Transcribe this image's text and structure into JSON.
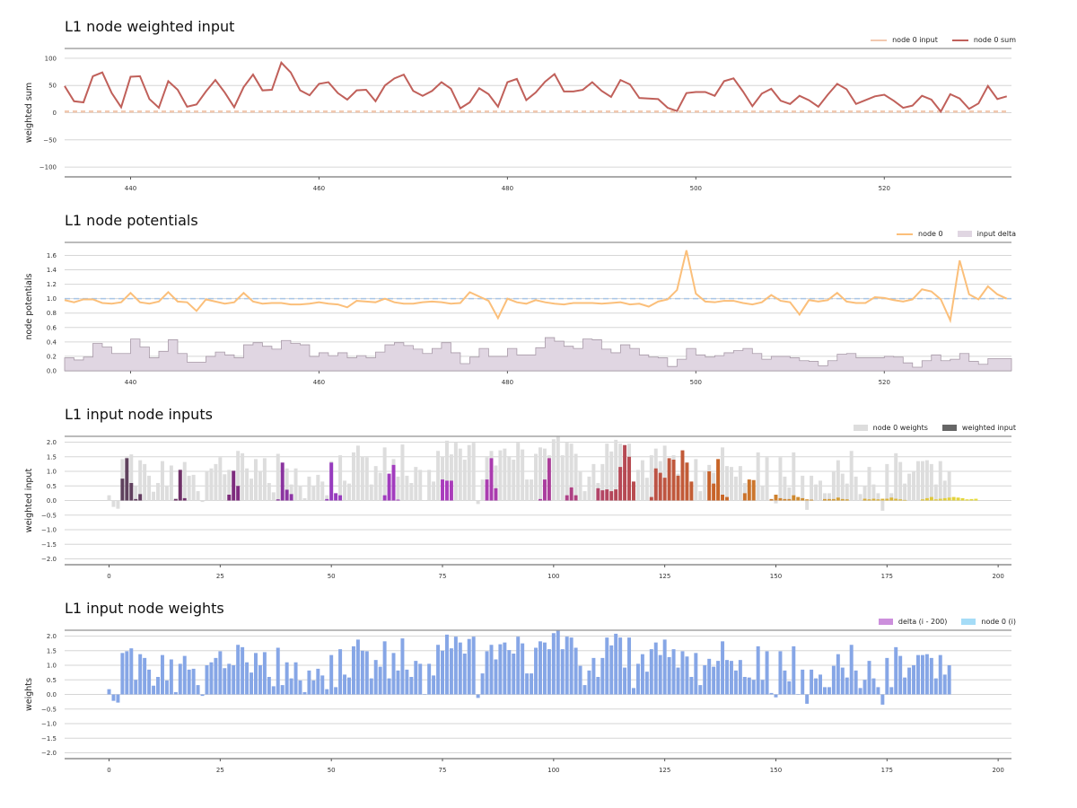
{
  "chart_data": [
    {
      "type": "line",
      "title": "L1 node weighted input",
      "xlabel": "",
      "ylabel": "weighted sum",
      "xlim": [
        433,
        533.5
      ],
      "ylim": [
        -118,
        118
      ],
      "xticks": [
        440,
        460,
        480,
        500,
        520
      ],
      "yticks": [
        -100,
        -50,
        0,
        50,
        100
      ],
      "yticklabels": [
        "−100",
        "−50",
        "0",
        "50",
        "100"
      ],
      "grid": true,
      "legend_position": "top-right",
      "x": [
        433,
        434,
        435,
        436,
        437,
        438,
        439,
        440,
        441,
        442,
        443,
        444,
        445,
        446,
        447,
        448,
        449,
        450,
        451,
        452,
        453,
        454,
        455,
        456,
        457,
        458,
        459,
        460,
        461,
        462,
        463,
        464,
        465,
        466,
        467,
        468,
        469,
        470,
        471,
        472,
        473,
        474,
        475,
        476,
        477,
        478,
        479,
        480,
        481,
        482,
        483,
        484,
        485,
        486,
        487,
        488,
        489,
        490,
        491,
        492,
        493,
        494,
        495,
        496,
        497,
        498,
        499,
        500,
        501,
        502,
        503,
        504,
        505,
        506,
        507,
        508,
        509,
        510,
        511,
        512,
        513,
        514,
        515,
        516,
        517,
        518,
        519,
        520,
        521,
        522,
        523,
        524,
        525,
        526,
        527,
        528,
        529,
        530,
        531,
        532,
        533
      ],
      "series": [
        {
          "name": "node 0 input",
          "color": "#f2c9b0",
          "style": "dashed",
          "values": [
            2,
            2,
            2,
            2,
            2,
            2,
            2,
            2,
            2,
            2,
            2,
            2,
            2,
            2,
            2,
            2,
            2,
            2,
            2,
            2,
            2,
            2,
            2,
            2,
            2,
            2,
            2,
            2,
            2,
            2,
            2,
            2,
            2,
            2,
            2,
            2,
            2,
            2,
            2,
            2,
            2,
            2,
            2,
            2,
            2,
            2,
            2,
            2,
            2,
            2,
            2,
            2,
            2,
            2,
            2,
            2,
            2,
            2,
            2,
            2,
            2,
            2,
            2,
            2,
            2,
            2,
            2,
            2,
            2,
            2,
            2,
            2,
            2,
            2,
            2,
            2,
            2,
            2,
            2,
            2,
            2,
            2,
            2,
            2,
            2,
            2,
            2,
            2,
            2,
            2,
            2,
            2,
            2,
            2,
            2,
            2,
            2,
            2,
            2,
            2,
            2
          ]
        },
        {
          "name": "node 0 sum",
          "color": "#c0605a",
          "values": [
            49,
            21,
            19,
            67,
            74,
            36,
            10,
            66,
            67,
            25,
            9,
            58,
            42,
            11,
            15,
            39,
            60,
            37,
            10,
            47,
            70,
            41,
            42,
            92,
            74,
            41,
            32,
            53,
            56,
            36,
            24,
            41,
            42,
            21,
            50,
            63,
            70,
            40,
            31,
            40,
            56,
            44,
            8,
            19,
            45,
            34,
            11,
            56,
            62,
            23,
            37,
            57,
            71,
            39,
            39,
            42,
            56,
            40,
            29,
            60,
            52,
            27,
            26,
            25,
            9,
            3,
            36,
            38,
            38,
            31,
            58,
            63,
            39,
            12,
            35,
            44,
            22,
            16,
            31,
            23,
            11,
            33,
            53,
            43,
            16,
            23,
            30,
            33,
            22,
            9,
            13,
            31,
            24,
            2,
            34,
            26,
            7,
            17,
            49,
            25,
            30
          ]
        }
      ]
    },
    {
      "type": "line",
      "title": "L1 node potentials",
      "xlabel": "",
      "ylabel": "node potentials",
      "xlim": [
        433,
        533.5
      ],
      "ylim": [
        0,
        1.78
      ],
      "xticks": [
        440,
        460,
        480,
        500,
        520
      ],
      "yticks": [
        0.0,
        0.2,
        0.4,
        0.6,
        0.8,
        1.0,
        1.2,
        1.4,
        1.6
      ],
      "yticklabels": [
        "0.0",
        "0.2",
        "0.4",
        "0.6",
        "0.8",
        "1.0",
        "1.2",
        "1.4",
        "1.6"
      ],
      "grid": true,
      "legend_position": "top-right",
      "threshold": 1.0,
      "x": [
        433,
        434,
        435,
        436,
        437,
        438,
        439,
        440,
        441,
        442,
        443,
        444,
        445,
        446,
        447,
        448,
        449,
        450,
        451,
        452,
        453,
        454,
        455,
        456,
        457,
        458,
        459,
        460,
        461,
        462,
        463,
        464,
        465,
        466,
        467,
        468,
        469,
        470,
        471,
        472,
        473,
        474,
        475,
        476,
        477,
        478,
        479,
        480,
        481,
        482,
        483,
        484,
        485,
        486,
        487,
        488,
        489,
        490,
        491,
        492,
        493,
        494,
        495,
        496,
        497,
        498,
        499,
        500,
        501,
        502,
        503,
        504,
        505,
        506,
        507,
        508,
        509,
        510,
        511,
        512,
        513,
        514,
        515,
        516,
        517,
        518,
        519,
        520,
        521,
        522,
        523,
        524,
        525,
        526,
        527,
        528,
        529,
        530,
        531,
        532,
        533
      ],
      "series": [
        {
          "name": "node 0",
          "color": "#fbbf7a",
          "values": [
            0.98,
            0.95,
            0.99,
            0.99,
            0.94,
            0.93,
            0.95,
            1.08,
            0.95,
            0.93,
            0.96,
            1.09,
            0.96,
            0.95,
            0.83,
            0.99,
            0.96,
            0.93,
            0.95,
            1.08,
            0.96,
            0.93,
            0.94,
            0.94,
            0.92,
            0.92,
            0.93,
            0.95,
            0.93,
            0.92,
            0.88,
            0.97,
            0.96,
            0.95,
            1.0,
            0.95,
            0.93,
            0.93,
            0.95,
            0.96,
            0.95,
            0.93,
            0.94,
            1.09,
            1.03,
            0.97,
            0.73,
            1.0,
            0.95,
            0.93,
            0.98,
            0.95,
            0.93,
            0.92,
            0.94,
            0.94,
            0.94,
            0.93,
            0.94,
            0.95,
            0.92,
            0.93,
            0.89,
            0.96,
            0.99,
            1.12,
            1.67,
            1.07,
            0.96,
            0.95,
            0.97,
            0.97,
            0.94,
            0.92,
            0.95,
            1.05,
            0.97,
            0.95,
            0.78,
            0.98,
            0.96,
            0.98,
            1.08,
            0.96,
            0.94,
            0.94,
            1.02,
            1.01,
            0.98,
            0.96,
            0.99,
            1.13,
            1.1,
            0.99,
            0.7,
            1.53,
            1.06,
            0.99,
            1.17,
            1.06,
            1.0
          ]
        },
        {
          "name": "input delta",
          "color": "#e0d6e2",
          "style": "step-fill",
          "values": [
            0.18,
            0.15,
            0.19,
            0.38,
            0.33,
            0.24,
            0.24,
            0.44,
            0.33,
            0.18,
            0.27,
            0.43,
            0.24,
            0.12,
            0.12,
            0.2,
            0.26,
            0.22,
            0.18,
            0.36,
            0.39,
            0.34,
            0.3,
            0.42,
            0.38,
            0.36,
            0.2,
            0.25,
            0.21,
            0.25,
            0.18,
            0.21,
            0.18,
            0.26,
            0.36,
            0.39,
            0.35,
            0.3,
            0.24,
            0.31,
            0.39,
            0.25,
            0.1,
            0.19,
            0.31,
            0.2,
            0.2,
            0.31,
            0.22,
            0.22,
            0.32,
            0.46,
            0.41,
            0.34,
            0.31,
            0.44,
            0.43,
            0.3,
            0.25,
            0.36,
            0.31,
            0.22,
            0.19,
            0.18,
            0.06,
            0.16,
            0.31,
            0.22,
            0.19,
            0.21,
            0.25,
            0.28,
            0.31,
            0.24,
            0.16,
            0.2,
            0.2,
            0.18,
            0.14,
            0.13,
            0.07,
            0.14,
            0.23,
            0.24,
            0.18,
            0.18,
            0.18,
            0.2,
            0.19,
            0.11,
            0.05,
            0.14,
            0.22,
            0.14,
            0.16,
            0.24,
            0.13,
            0.09,
            0.17,
            0.17,
            0.17
          ]
        }
      ]
    },
    {
      "type": "bar",
      "title": "L1 input node inputs",
      "xlabel": "",
      "ylabel": "weighted input",
      "xlim": [
        -10,
        203
      ],
      "ylim": [
        -2.2,
        2.2
      ],
      "xticks": [
        0,
        25,
        50,
        75,
        100,
        125,
        150,
        175,
        200
      ],
      "yticks": [
        -2.0,
        -1.5,
        -1.0,
        -0.5,
        0.0,
        0.5,
        1.0,
        1.5,
        2.0
      ],
      "yticklabels": [
        "−2.0",
        "−1.5",
        "−1.0",
        "−0.5",
        "0.0",
        "0.5",
        "1.0",
        "1.5",
        "2.0"
      ],
      "grid": true,
      "legend_position": "top-right",
      "series": [
        {
          "name": "node 0 weights",
          "color": "#dddddd",
          "source": "weights"
        },
        {
          "name": "weighted input",
          "color": "#666666",
          "source": "weighted_input",
          "colormap": "plasma-like by index"
        }
      ],
      "weighted_input": [
        0,
        0,
        0,
        0.75,
        1.45,
        0.6,
        0.05,
        0.22,
        0,
        0,
        0,
        0,
        0,
        0,
        0,
        0.05,
        1.05,
        0.08,
        0,
        0,
        0,
        0,
        0,
        0,
        0,
        0,
        0,
        0.2,
        1.02,
        0.5,
        0,
        0,
        0,
        0,
        0,
        0,
        0,
        0,
        0.04,
        1.3,
        0.37,
        0.22,
        0,
        0,
        0,
        0,
        0,
        0,
        0,
        0.05,
        1.3,
        0.25,
        0.18,
        0,
        0,
        0,
        0,
        0,
        0,
        0,
        0,
        0,
        0.18,
        0.92,
        1.22,
        0.03,
        0,
        0,
        0,
        0,
        0,
        0,
        0,
        0,
        0,
        0.72,
        0.68,
        0.68,
        0,
        0,
        0,
        0,
        0,
        0,
        0,
        0.72,
        1.45,
        0.42,
        0,
        0,
        0,
        0,
        0,
        0,
        0,
        0,
        0,
        0.05,
        0.72,
        1.45,
        0,
        0,
        0,
        0.18,
        0.45,
        0.18,
        0,
        0,
        0,
        0,
        0.42,
        0.35,
        0.38,
        0.32,
        0.38,
        1.15,
        1.9,
        1.5,
        0.65,
        0,
        0,
        0,
        0.12,
        1.1,
        0.95,
        0.78,
        1.45,
        1.4,
        0.85,
        1.72,
        1.3,
        0.65,
        0,
        0,
        0,
        1.0,
        0.58,
        1.42,
        0.2,
        0.12,
        0,
        0,
        0,
        0.25,
        0.72,
        0.7,
        0,
        0,
        0,
        0.05,
        0.2,
        0.08,
        0.05,
        0.05,
        0.18,
        0.12,
        0.08,
        0.04,
        0.03,
        0,
        0,
        0.05,
        0.05,
        0.05,
        0.1,
        0.05,
        0.04,
        0,
        0,
        0,
        0.06,
        0.04,
        0.06,
        0.04,
        0.06,
        0.06,
        0.1,
        0.06,
        0.04,
        0.02,
        0,
        0,
        0,
        0.04,
        0.08,
        0.12,
        0.04,
        0.06,
        0.08,
        0.1,
        0.12,
        0.1,
        0.08,
        0.04,
        0.05,
        0.06
      ],
      "weights": [
        0.18,
        -0.22,
        -0.28,
        1.42,
        1.48,
        1.58,
        0.5,
        1.38,
        1.25,
        0.85,
        0.3,
        0.6,
        1.35,
        0.48,
        1.2,
        0.08,
        1.05,
        1.32,
        0.85,
        0.88,
        0.32,
        -0.05,
        1.0,
        1.1,
        1.25,
        1.48,
        0.9,
        1.05,
        1.0,
        1.7,
        1.62,
        1.1,
        0.75,
        1.42,
        1.0,
        1.45,
        0.6,
        0.28,
        1.6,
        0.32,
        1.1,
        0.55,
        1.1,
        0.48,
        0.08,
        0.82,
        0.48,
        0.88,
        0.65,
        0.18,
        1.35,
        0.25,
        1.55,
        0.68,
        0.58,
        1.65,
        1.88,
        1.5,
        1.48,
        0.55,
        1.18,
        0.95,
        1.82,
        0.55,
        1.42,
        0.82,
        1.92,
        0.85,
        0.6,
        1.15,
        1.05,
        0.0,
        1.05,
        0.65,
        1.7,
        1.5,
        2.05,
        1.58,
        1.98,
        1.78,
        1.4,
        1.9,
        1.98,
        -0.12,
        0.72,
        1.48,
        1.7,
        1.2,
        1.72,
        1.78,
        1.52,
        1.4,
        1.98,
        1.75,
        0.72,
        0.72,
        1.6,
        1.82,
        1.78,
        1.55,
        2.1,
        2.18,
        1.55,
        1.98,
        1.95,
        1.6,
        0.98,
        0.32,
        0.82,
        1.25,
        0.6,
        1.25,
        1.95,
        1.68,
        2.08,
        1.95,
        0.92,
        1.95,
        0.22,
        1.05,
        1.38,
        0.78,
        1.55,
        1.78,
        1.35,
        1.88,
        1.28,
        1.55,
        0.92,
        1.48,
        1.3,
        0.6,
        1.42,
        0.32,
        1.0,
        1.22,
        0.95,
        1.15,
        1.82,
        1.18,
        1.15,
        0.82,
        1.18,
        0.6,
        0.58,
        0.5,
        1.65,
        0.5,
        1.48,
        0.05,
        -0.1,
        1.48,
        0.82,
        0.45,
        1.65,
        0.0,
        0.85,
        -0.32,
        0.85,
        0.55,
        0.68,
        0.25,
        0.25,
        0.98,
        1.38,
        0.92,
        0.58,
        1.7,
        0.82,
        0.22,
        0.5,
        1.15,
        0.55,
        0.25,
        -0.35,
        1.25,
        0.25,
        1.62,
        1.32,
        0.58,
        0.92,
        1.0,
        1.35,
        1.35,
        1.38,
        1.25,
        0.55,
        1.35,
        0.68,
        1.0
      ]
    },
    {
      "type": "bar",
      "title": "L1 input node weights",
      "xlabel": "",
      "ylabel": "weights",
      "xlim": [
        -10,
        203
      ],
      "ylim": [
        -2.2,
        2.2
      ],
      "xticks": [
        0,
        25,
        50,
        75,
        100,
        125,
        150,
        175,
        200
      ],
      "yticks": [
        -2.0,
        -1.5,
        -1.0,
        -0.5,
        0.0,
        0.5,
        1.0,
        1.5,
        2.0
      ],
      "yticklabels": [
        "−2.0",
        "−1.5",
        "−1.0",
        "−0.5",
        "0.0",
        "0.5",
        "1.0",
        "1.5",
        "2.0"
      ],
      "grid": true,
      "legend_position": "top-right",
      "series": [
        {
          "name": "delta (i - 200)",
          "color": "#cc8fdc",
          "values": []
        },
        {
          "name": "node 0 (i)",
          "color": "#a5dcf7",
          "bar_color": "#86a6e6",
          "source": "weights"
        }
      ]
    }
  ]
}
